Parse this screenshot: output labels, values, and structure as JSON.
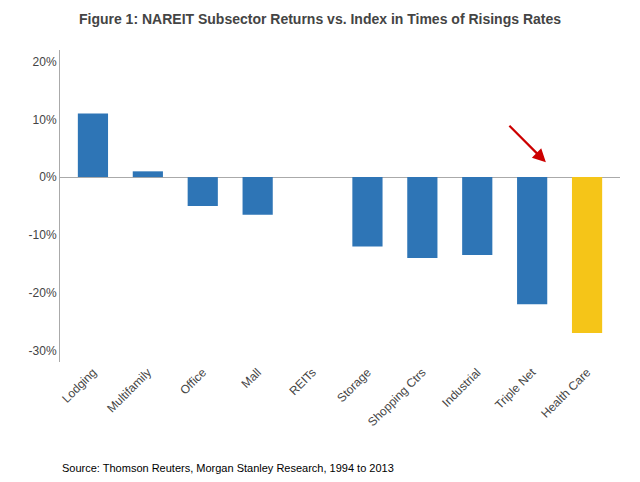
{
  "chart_data": {
    "type": "bar",
    "title": "Figure 1: NAREIT Subsector Returns vs. Index in Times of Risings Rates",
    "categories": [
      "Lodging",
      "Multifamily",
      "Office",
      "Mall",
      "REITs",
      "Storage",
      "Shopping Ctrs",
      "Industrial",
      "Triple Net",
      "Health Care"
    ],
    "values": [
      11.0,
      1.0,
      -5.0,
      -6.5,
      0.0,
      -12.0,
      -14.0,
      -13.5,
      -22.0,
      -27.0
    ],
    "colors": [
      "#2e75b6",
      "#2e75b6",
      "#2e75b6",
      "#2e75b6",
      "#2e75b6",
      "#2e75b6",
      "#2e75b6",
      "#2e75b6",
      "#2e75b6",
      "#f5c518"
    ],
    "ylim": [
      -32,
      22
    ],
    "yticks": [
      {
        "value": -30,
        "label": "-30%"
      },
      {
        "value": -20,
        "label": "-20%"
      },
      {
        "value": -10,
        "label": "-10%"
      },
      {
        "value": 0,
        "label": "0%"
      },
      {
        "value": 10,
        "label": "10%"
      },
      {
        "value": 20,
        "label": "20%"
      }
    ],
    "grid": false,
    "source": "Source: Thomson Reuters, Morgan Stanley Research, 1994 to 2013"
  }
}
